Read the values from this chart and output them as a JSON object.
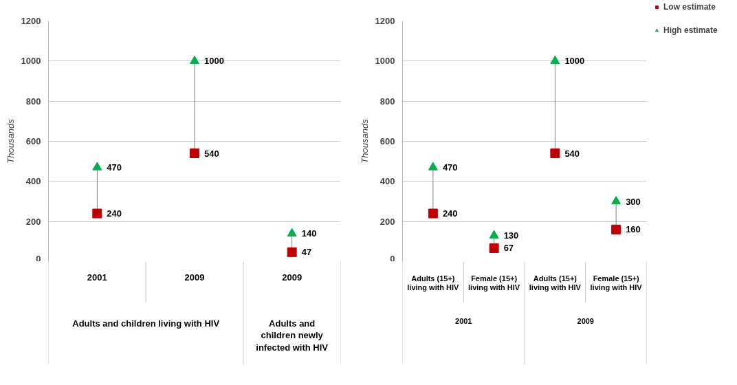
{
  "chart_data": [
    {
      "type": "scatter",
      "ylabel": "Thousands",
      "categories": [
        "2001",
        "2009",
        "2009"
      ],
      "annotations": [
        "Adults and children living with HIV",
        "Adults and children newly infected with HIV"
      ],
      "ylim": [
        0,
        1200
      ],
      "yticks": [
        0,
        200,
        400,
        600,
        800,
        1000,
        1200
      ],
      "grid": "y",
      "legend": false,
      "data_labels": true,
      "series": [
        {
          "color": "#c00000",
          "marker": "square",
          "values": [
            240,
            540,
            47
          ]
        },
        {
          "color": "#00b050",
          "marker": "triangle",
          "values": [
            470,
            1000,
            140
          ]
        }
      ]
    },
    {
      "type": "scatter",
      "ylabel": "Thousands",
      "categories": [
        "Adults (15+) living with HIV",
        "Female (15+) living with HIV",
        "Adults (15+) living with HIV",
        "Female (15+) living with HIV"
      ],
      "annotations": [
        "2001",
        "2009"
      ],
      "ylim": [
        0,
        1200
      ],
      "yticks": [
        0,
        200,
        400,
        600,
        800,
        1000,
        1200
      ],
      "grid": "y",
      "legend": "top right",
      "data_labels": true,
      "series": [
        {
          "name": "Low estimate",
          "color": "#c00000",
          "marker": "square",
          "values": [
            240,
            67,
            540,
            160
          ]
        },
        {
          "name": "High estimate",
          "color": "#00b050",
          "marker": "triangle",
          "values": [
            470,
            130,
            1000,
            300
          ]
        }
      ]
    }
  ]
}
